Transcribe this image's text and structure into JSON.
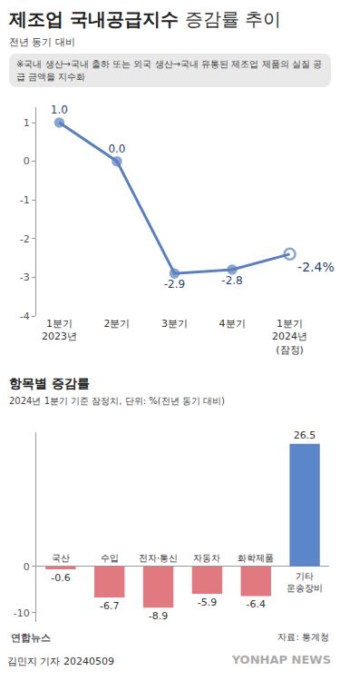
{
  "header": {
    "title": "제조업 국내공급지수",
    "title_light": "증감률 추이",
    "subtitle": "전년 동기 대비",
    "note": "※국내 생산→국내 출하 또는 외국 생산→국내 유통된 제조업 제품의 실질 공급 금액을 지수화"
  },
  "chart_data": [
    {
      "type": "line",
      "categories": [
        "1분기 2023년",
        "2분기",
        "3분기",
        "4분기",
        "1분기 2024년 (잠정)"
      ],
      "values": [
        1.0,
        0.0,
        -2.9,
        -2.8,
        -2.4
      ],
      "value_labels": [
        "1.0",
        "0.0",
        "-2.9",
        "-2.8",
        "-2.4%"
      ],
      "data_labels": true,
      "color": "#5a7fc0",
      "marker": "circle",
      "ylim": [
        -4,
        1.4
      ],
      "yticks": [
        -4,
        -3,
        -2,
        -1,
        0,
        1
      ],
      "grid": false
    },
    {
      "type": "bar",
      "title": "항목별 증감률",
      "subtitle": "2024년 1분기 기준 잠정치, 단위: %(전년 동기 대비)",
      "categories": [
        "국산",
        "수입",
        "전자·통신",
        "자동차",
        "화학제품",
        "기타 운송장비"
      ],
      "values": [
        -0.6,
        -6.7,
        -8.9,
        -5.9,
        -6.4,
        26.5
      ],
      "colors": [
        "#e07a80",
        "#e07a80",
        "#e07a80",
        "#e07a80",
        "#e07a80",
        "#5b86c9"
      ],
      "data_labels": true,
      "ylim": [
        -12,
        29
      ],
      "yticks": [
        -10,
        0
      ],
      "grid": false
    }
  ],
  "footer": {
    "logo": "연합뉴스",
    "source": "자료: 통계청",
    "byline": "김민지 기자 20240509",
    "watermark": "YONHAP NEWS"
  }
}
